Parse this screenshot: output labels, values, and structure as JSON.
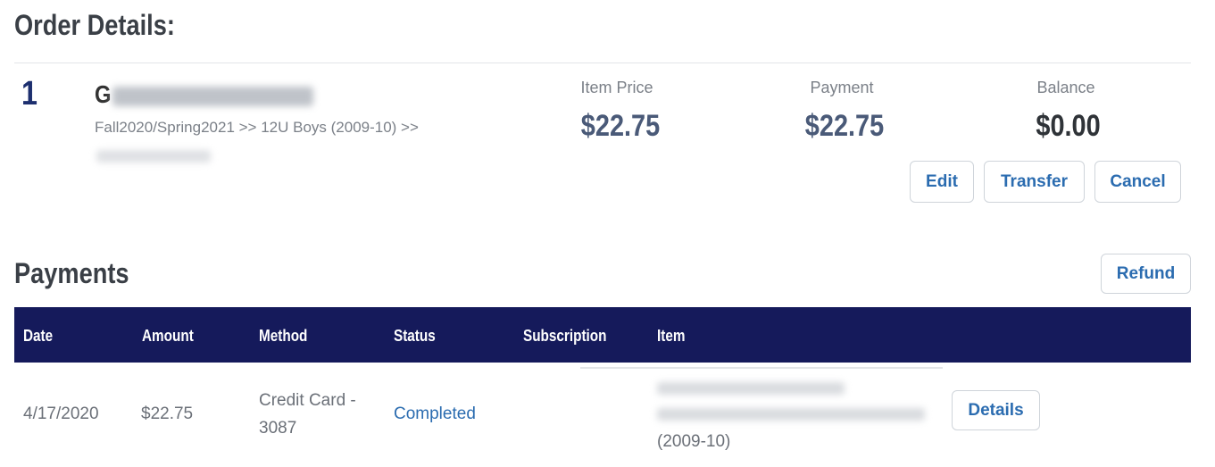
{
  "order": {
    "title": "Order Details:",
    "index": "1",
    "name_visible": "G",
    "path": "Fall2020/Spring2021 >> 12U Boys (2009-10) >>",
    "item_price_label": "Item Price",
    "item_price": "$22.75",
    "payment_label": "Payment",
    "payment": "$22.75",
    "balance_label": "Balance",
    "balance": "$0.00",
    "buttons": {
      "edit": "Edit",
      "transfer": "Transfer",
      "cancel": "Cancel"
    }
  },
  "payments": {
    "title": "Payments",
    "refund": "Refund",
    "columns": [
      "Date",
      "Amount",
      "Method",
      "Status",
      "Subscription",
      "Item"
    ],
    "rows": [
      {
        "date": "4/17/2020",
        "amount": "$22.75",
        "method_line1": "Credit Card -",
        "method_line2": "3087",
        "status": "Completed",
        "item_tail": "(2009-10)",
        "details": "Details"
      }
    ]
  },
  "colors": {
    "header_bg": "#151a5b",
    "link": "#2b6cb0",
    "index": "#1d2f6f"
  }
}
